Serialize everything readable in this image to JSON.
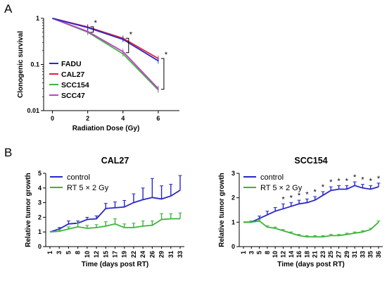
{
  "chart_data": [
    {
      "panel": "A",
      "type": "line",
      "title": "",
      "xlabel": "Radiation Dose (Gy)",
      "ylabel": "Clonogenic survival",
      "x": [
        0,
        2,
        4,
        6
      ],
      "xticks": [
        "0",
        "2",
        "4",
        "6"
      ],
      "yscale": "log",
      "ylim": [
        0.01,
        1
      ],
      "yticks": [
        "0.01",
        "0.1",
        "1"
      ],
      "series": [
        {
          "name": "FADU",
          "color": "#2828c8",
          "values": [
            1,
            0.63,
            0.35,
            0.12
          ]
        },
        {
          "name": "CAL27",
          "color": "#e0203c",
          "values": [
            1,
            0.65,
            0.37,
            0.135
          ]
        },
        {
          "name": "SCC154",
          "color": "#3cb43c",
          "values": [
            1,
            0.5,
            0.17,
            0.028
          ]
        },
        {
          "name": "SCC47",
          "color": "#c040c8",
          "values": [
            1,
            0.52,
            0.19,
            0.03
          ]
        }
      ],
      "annotations": [
        "*",
        "*",
        "*"
      ],
      "legend_position": "bottom-left",
      "grid": false
    },
    {
      "panel": "B",
      "type": "line",
      "title": "CAL27",
      "xlabel": "Time (days post RT)",
      "ylabel": "Relative tumor growth",
      "x": [
        1,
        3,
        5,
        8,
        10,
        12,
        15,
        17,
        19,
        22,
        24,
        26,
        29,
        31,
        33
      ],
      "xticks": [
        "1",
        "3",
        "5",
        "8",
        "10",
        "12",
        "15",
        "17",
        "19",
        "22",
        "24",
        "26",
        "29",
        "31",
        "33"
      ],
      "ylim": [
        0,
        5
      ],
      "yticks": [
        "0",
        "1",
        "2",
        "3",
        "4",
        "5"
      ],
      "series": [
        {
          "name": "control",
          "color": "#2828c8",
          "values": [
            1,
            1.2,
            1.55,
            1.6,
            1.85,
            1.9,
            2.6,
            2.65,
            2.7,
            3.0,
            3.2,
            3.35,
            3.25,
            3.45,
            3.85
          ],
          "error": [
            0,
            0.1,
            0.2,
            0.15,
            0.15,
            0.2,
            0.35,
            0.4,
            0.45,
            0.6,
            0.8,
            1.3,
            0.9,
            0.8,
            1.0
          ]
        },
        {
          "name": "RT 5 × 2 Gy",
          "color": "#3cb43c",
          "values": [
            1,
            1.05,
            1.2,
            1.35,
            1.25,
            1.3,
            1.4,
            1.55,
            1.3,
            1.3,
            1.4,
            1.45,
            1.85,
            1.9,
            1.9
          ],
          "error": [
            0,
            0.1,
            0.15,
            0.25,
            0.2,
            0.2,
            0.3,
            0.35,
            0.25,
            0.3,
            0.35,
            0.3,
            0.4,
            0.35,
            0.4
          ]
        }
      ],
      "legend_position": "top-left",
      "grid": false
    },
    {
      "panel": "B",
      "type": "line",
      "title": "SCC154",
      "xlabel": "Time (days post RT)",
      "ylabel": "Relative tumor growth",
      "x": [
        1,
        3,
        5,
        8,
        10,
        12,
        14,
        16,
        18,
        21,
        23,
        25,
        27,
        29,
        31,
        33,
        35,
        36
      ],
      "xticks": [
        "1",
        "3",
        "5",
        "8",
        "10",
        "12",
        "14",
        "16",
        "18",
        "21",
        "23",
        "25",
        "27",
        "29",
        "31",
        "33",
        "35",
        "36"
      ],
      "ylim": [
        0,
        3
      ],
      "yticks": [
        "0",
        "1",
        "2",
        "3"
      ],
      "series": [
        {
          "name": "control",
          "color": "#2828c8",
          "values": [
            1,
            1.0,
            1.15,
            1.3,
            1.45,
            1.55,
            1.65,
            1.75,
            1.8,
            1.9,
            2.1,
            2.3,
            2.35,
            2.35,
            2.5,
            2.4,
            2.35,
            2.45
          ],
          "error": [
            0,
            0.05,
            0.1,
            0.15,
            0.15,
            0.2,
            0.15,
            0.15,
            0.15,
            0.15,
            0.15,
            0.15,
            0.15,
            0.15,
            0.15,
            0.15,
            0.15,
            0.15
          ]
        },
        {
          "name": "RT 5 × 2 Gy",
          "color": "#3cb43c",
          "values": [
            1,
            1.0,
            1.05,
            0.8,
            0.75,
            0.65,
            0.55,
            0.45,
            0.4,
            0.4,
            0.4,
            0.45,
            0.45,
            0.5,
            0.55,
            0.6,
            0.7,
            1.0
          ],
          "error": [
            0,
            0.05,
            0.05,
            0.05,
            0.05,
            0.05,
            0.05,
            0.05,
            0.05,
            0.05,
            0.05,
            0.05,
            0.05,
            0.05,
            0.05,
            0.05,
            0.05,
            0.05
          ]
        }
      ],
      "star_x": [
        12,
        14,
        16,
        18,
        21,
        23,
        25,
        27,
        29,
        31,
        33,
        35,
        36
      ],
      "star_label": "*",
      "legend_position": "top-left",
      "grid": false
    }
  ],
  "panel_labels": [
    "A",
    "B"
  ]
}
